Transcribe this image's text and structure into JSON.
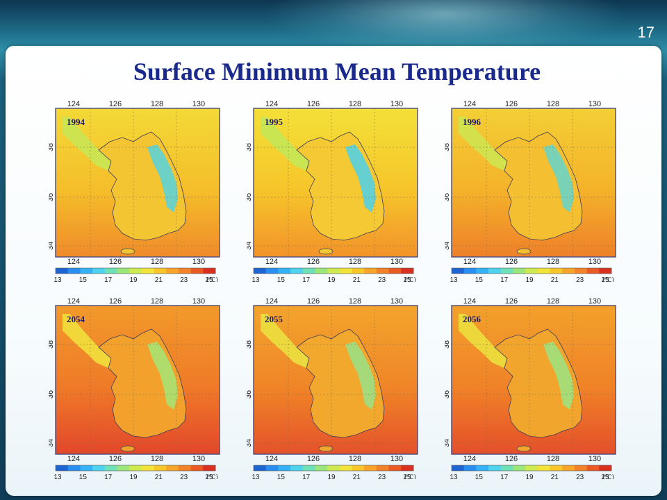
{
  "slide_number": "17",
  "title": "Surface Minimum Mean Temperature",
  "axes": {
    "lon_ticks": [
      "124",
      "126",
      "128",
      "130"
    ],
    "lat_ticks": [
      "38",
      "36",
      "34"
    ]
  },
  "colorbar": {
    "ticks": [
      "13",
      "15",
      "17",
      "19",
      "21",
      "23",
      "25"
    ],
    "unit": "(℃)",
    "colors": [
      "#1e64d2",
      "#2a8ef0",
      "#35b2f5",
      "#4ed2ee",
      "#6ee0b8",
      "#9ae67a",
      "#cdea50",
      "#f2e33a",
      "#f7c62a",
      "#f6a52a",
      "#f2832a",
      "#ea5a24",
      "#d93020"
    ]
  },
  "maps": [
    {
      "year": "1994",
      "warmth": 0.1
    },
    {
      "year": "1995",
      "warmth": 0.0
    },
    {
      "year": "1996",
      "warmth": 0.25
    },
    {
      "year": "2054",
      "warmth": 1.0
    },
    {
      "year": "2055",
      "warmth": 0.85
    },
    {
      "year": "2056",
      "warmth": 0.9
    }
  ]
}
